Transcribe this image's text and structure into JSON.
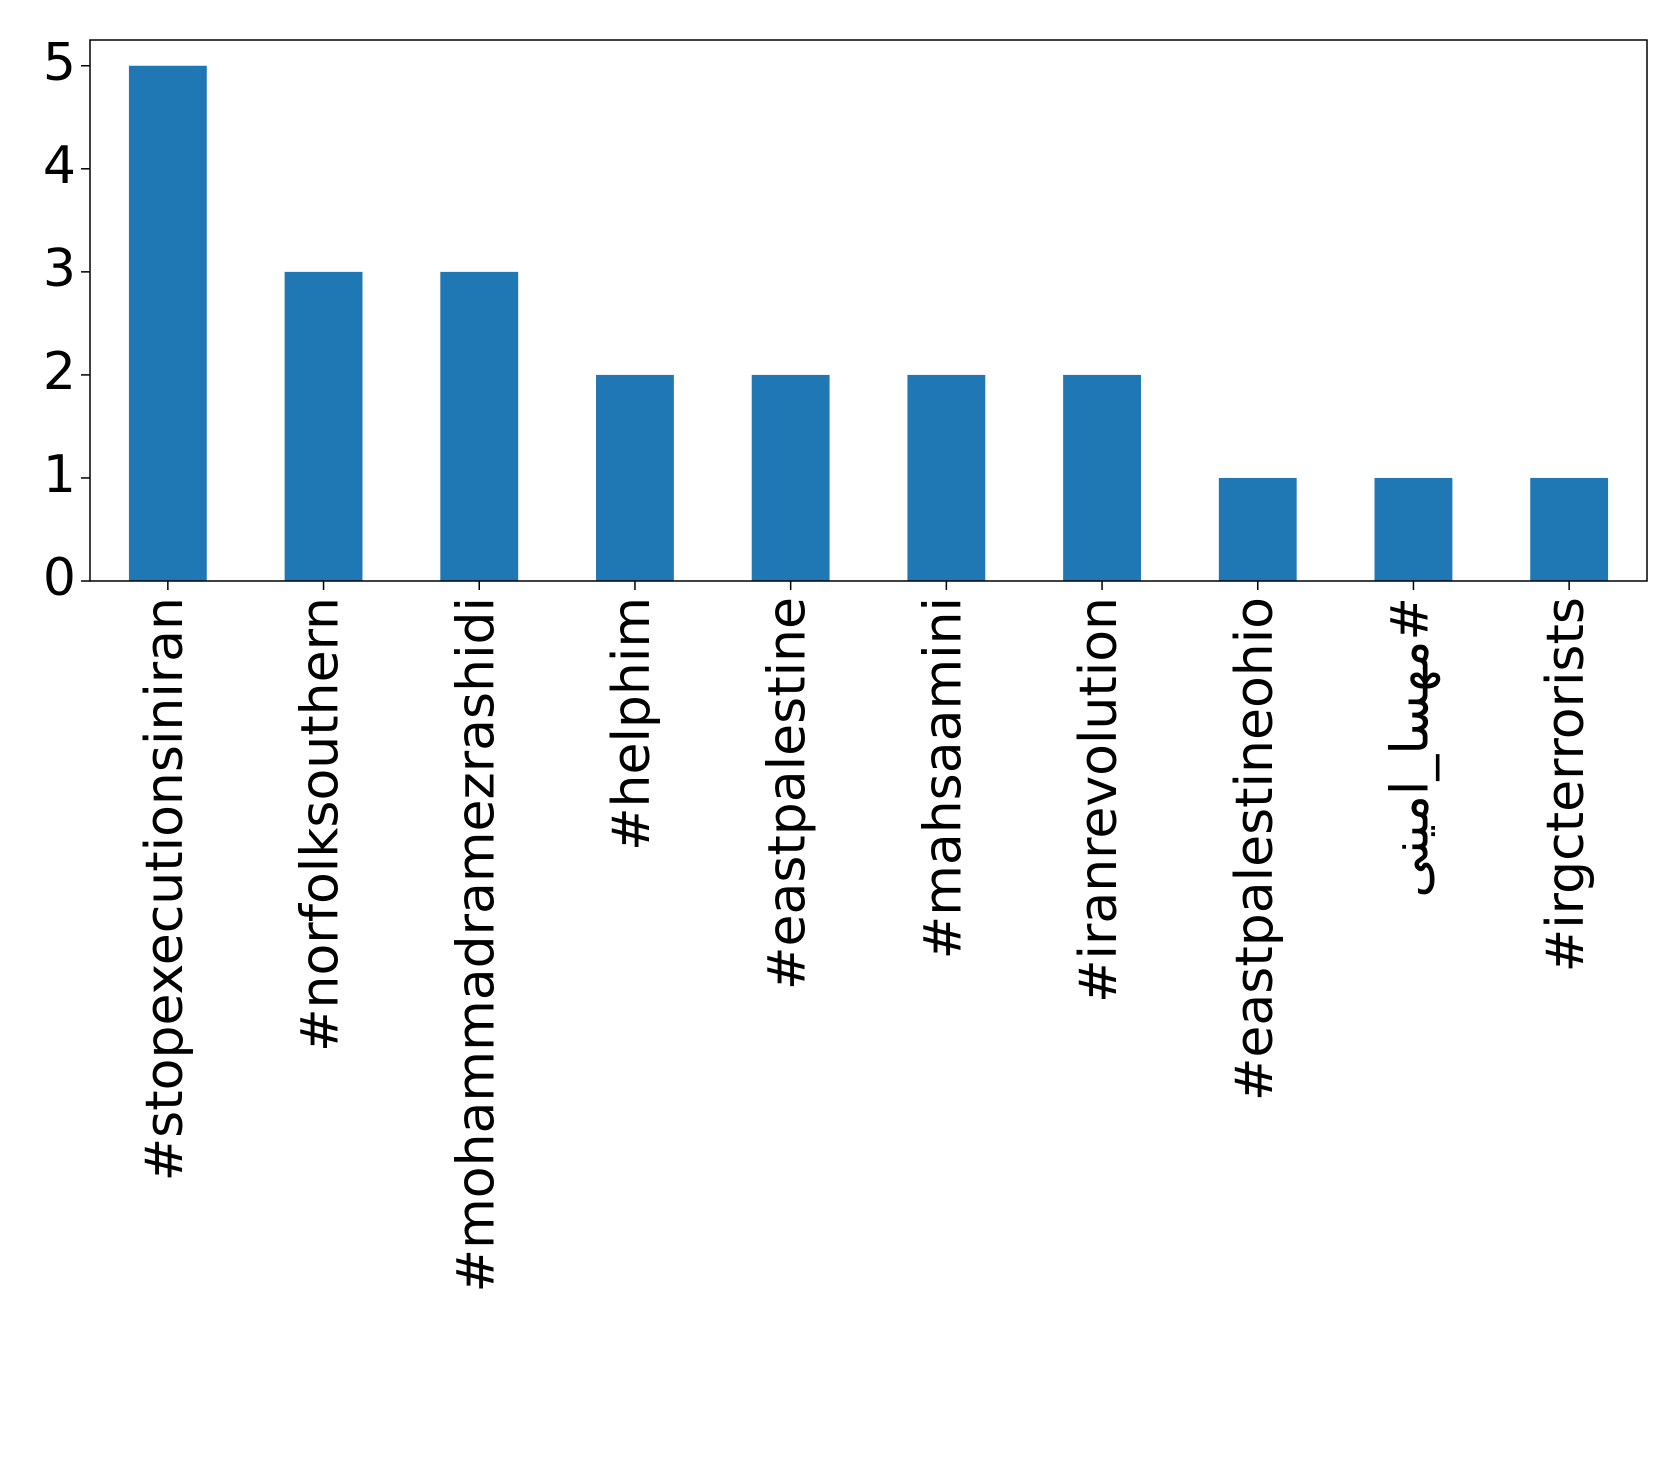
{
  "chart_data": {
    "type": "bar",
    "categories": [
      "#stopexecutionsiniran",
      "#norfolksouthern",
      "#mohammadramezrashidi",
      "#helphim",
      "#eastpalestine",
      "#mahsaamini",
      "#iranrevolution",
      "#eastpalestineohio",
      "#مهسا_امینی",
      "#irgcterrorists"
    ],
    "values": [
      5,
      3,
      3,
      2,
      2,
      2,
      2,
      1,
      1,
      1
    ],
    "color": "#1f77b4",
    "ylim": [
      0,
      5.25
    ],
    "yticks": [
      0,
      1,
      2,
      3,
      4,
      5
    ],
    "grid": false
  }
}
